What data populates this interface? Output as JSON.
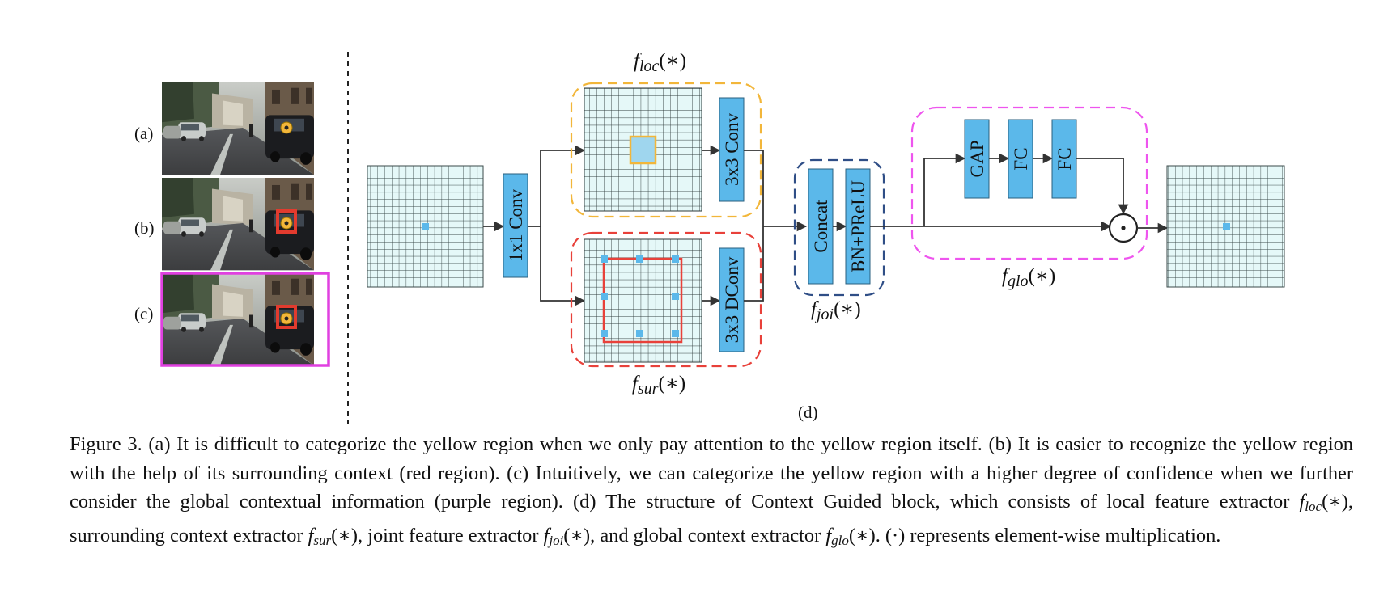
{
  "panels": {
    "a": "(a)",
    "b": "(b)",
    "c": "(c)",
    "d": "(d)"
  },
  "blocks": {
    "conv1x1": "1x1 Conv",
    "conv3x3": "3x3 Conv",
    "dconv3x3": "3x3 DConv",
    "concat": "Concat",
    "bn_prelu": "BN+PReLU",
    "gap": "GAP",
    "fc1": "FC",
    "fc2": "FC"
  },
  "functions": {
    "loc": {
      "name": "f",
      "sub": "loc",
      "arg": "(∗)"
    },
    "sur": {
      "name": "f",
      "sub": "sur",
      "arg": "(∗)"
    },
    "joi": {
      "name": "f",
      "sub": "joi",
      "arg": "(∗)"
    },
    "glo": {
      "name": "f",
      "sub": "glo",
      "arg": "(∗)"
    }
  },
  "multiply_symbol": "⊙",
  "caption": {
    "part1": "Figure 3. (a) It is difficult to categorize the yellow region when we only pay attention to the yellow region itself. (b) It is easier to recognize the yellow region with the help of its surrounding context (red region). (c) Intuitively, we can categorize the yellow region with a higher degree of confidence when we further consider the global contextual information (purple region). (d) The structure of Context Guided block, which consists of local feature extractor ",
    "part2": ", surrounding context extractor ",
    "part3": ", joint feature extractor ",
    "part4": ", and global context extractor ",
    "part5": ". (·) represents element-wise multiplication."
  },
  "colors": {
    "block_fill": "#5bb8ea",
    "grid_fill": "#e5f8f8",
    "loc_border": "#f2b63a",
    "sur_border": "#e8413a",
    "joi_border": "#2f4e86",
    "glo_border": "#ee55ee",
    "region_red": "#e23b2e",
    "region_yellow": "#f2b63a",
    "region_purple": "#e040e0"
  }
}
